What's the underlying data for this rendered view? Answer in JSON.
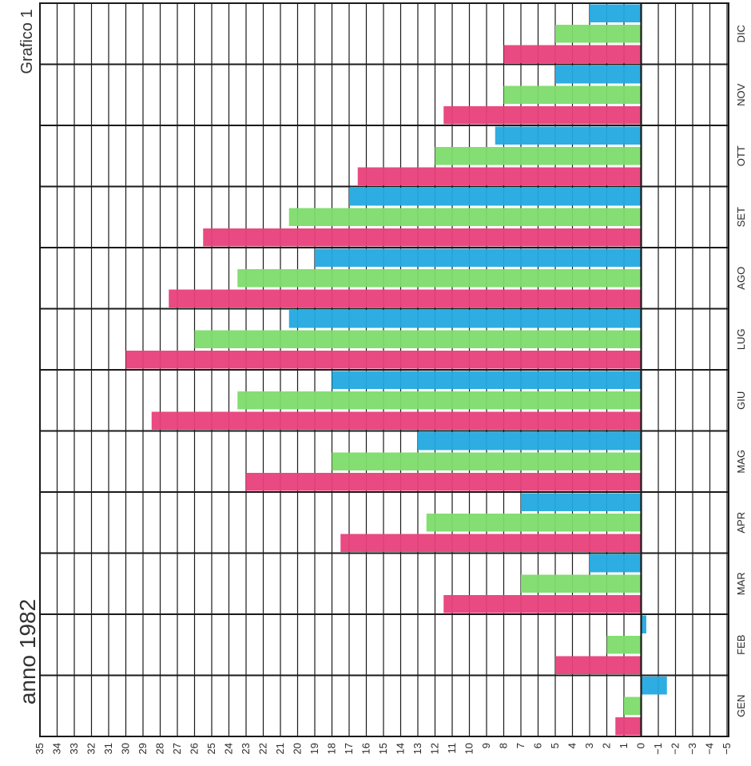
{
  "chart_data": {
    "type": "bar",
    "orientation": "horizontal",
    "title": "Grafico 1",
    "subtitle": "anno 1982",
    "categories": [
      "GEN",
      "FEB",
      "MAR",
      "APR",
      "MAG",
      "GIU",
      "LUG",
      "AGO",
      "SET",
      "OTT",
      "NOV",
      "DIC"
    ],
    "series": [
      {
        "color": "#e8407a",
        "values": [
          1.5,
          5.0,
          11.5,
          17.5,
          23.0,
          28.5,
          30.0,
          27.5,
          25.5,
          16.5,
          11.5,
          8.0
        ]
      },
      {
        "color": "#7ddc6b",
        "values": [
          1.0,
          2.0,
          7.0,
          12.5,
          18.0,
          23.5,
          26.0,
          23.5,
          20.5,
          12.0,
          8.0,
          5.0
        ]
      },
      {
        "color": "#22a9e0",
        "values": [
          -1.5,
          -0.3,
          3.0,
          7.0,
          13.0,
          18.0,
          20.5,
          19.0,
          17.0,
          8.5,
          5.0,
          3.0
        ]
      }
    ],
    "xlim": [
      35,
      -5
    ],
    "x_reversed": true,
    "grid": true,
    "tick_labels": [
      "35",
      "34",
      "33",
      "32",
      "31",
      "30",
      "29",
      "28",
      "27",
      "26",
      "25",
      "24",
      "23",
      "22",
      "21",
      "20",
      "19",
      "18",
      "17",
      "16",
      "15",
      "14",
      "13",
      "12",
      "11",
      "10",
      "9",
      "8",
      "7",
      "6",
      "5",
      "4",
      "3",
      "2",
      "1",
      "0",
      "−1",
      "−2",
      "−3",
      "−4",
      "−5"
    ]
  }
}
